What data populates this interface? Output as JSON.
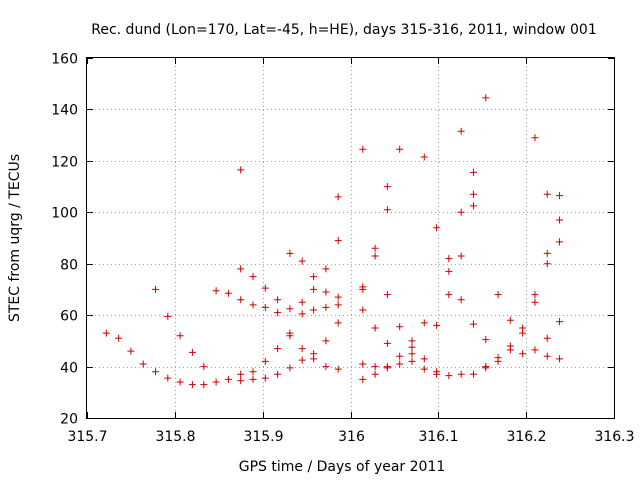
{
  "chart_data": {
    "type": "scatter",
    "title": "Rec. dund (Lon=170, Lat=-45, h=HE), days 315-316, 2011, window 001",
    "xlabel": "GPS time / Days of year 2011",
    "ylabel": "STEC from uqrg / TECUs",
    "xlim": [
      315.7,
      316.3
    ],
    "ylim": [
      20,
      160
    ],
    "xticks": [
      "315.7",
      "315.8",
      "315.9",
      "316",
      "316.1",
      "316.2",
      "316.3"
    ],
    "yticks": [
      "20",
      "40",
      "60",
      "80",
      "100",
      "120",
      "140",
      "160"
    ],
    "grid": true,
    "marker": "+",
    "color": "#cc0000",
    "series": [
      {
        "x": [
          315.722,
          315.736,
          315.75,
          315.764,
          315.778,
          315.778,
          315.792,
          315.792,
          315.806,
          315.806,
          315.82,
          315.82,
          315.833,
          315.833,
          315.847,
          315.847,
          315.861,
          315.861,
          315.875,
          315.875,
          315.875,
          315.875,
          315.875,
          315.889,
          315.889,
          315.889,
          315.889,
          315.903,
          315.903,
          315.903,
          315.903,
          315.917,
          315.917,
          315.917,
          315.917,
          315.931,
          315.931,
          315.931,
          315.931,
          315.931,
          315.945,
          315.945,
          315.945,
          315.945,
          315.945,
          315.958,
          315.958,
          315.958,
          315.958,
          315.958,
          315.972,
          315.972,
          315.972,
          315.972,
          315.972,
          315.986,
          315.986,
          315.986,
          315.986,
          315.986,
          315.986,
          316.014,
          316.014,
          316.014,
          316.014,
          316.014,
          316.014,
          316.028,
          316.028,
          316.028,
          316.028,
          316.028,
          316.042,
          316.042,
          316.042,
          316.042,
          316.042,
          316.042,
          316.056,
          316.056,
          316.056,
          316.056,
          316.07,
          316.07,
          316.07,
          316.07,
          316.084,
          316.084,
          316.084,
          316.084,
          316.098,
          316.098,
          316.098,
          316.098,
          316.112,
          316.112,
          316.112,
          316.112,
          316.126,
          316.126,
          316.126,
          316.126,
          316.126,
          316.14,
          316.14,
          316.14,
          316.14,
          316.14,
          316.154,
          316.154,
          316.154,
          316.154,
          316.168,
          316.168,
          316.168,
          316.182,
          316.182,
          316.182,
          316.196,
          316.196,
          316.196,
          316.21,
          316.21,
          316.21,
          316.21,
          316.224,
          316.224,
          316.224,
          316.224,
          316.224,
          316.238,
          316.238,
          316.238,
          316.238,
          316.238
        ],
        "y": [
          53,
          51,
          46,
          41,
          38,
          70,
          35.5,
          59.5,
          34,
          52,
          33,
          45.5,
          33,
          40,
          34,
          69.5,
          35,
          68.5,
          34.5,
          37,
          66,
          78,
          116.5,
          35,
          38,
          64,
          75,
          35.5,
          42,
          63,
          70.5,
          37,
          47,
          61,
          66,
          39.5,
          52,
          53,
          62.5,
          84,
          42.5,
          47,
          65,
          81,
          60.5,
          43,
          45,
          62,
          70,
          75,
          40,
          50,
          63,
          69,
          78,
          39,
          57,
          64,
          67,
          89,
          106,
          35,
          41,
          62,
          70,
          71,
          124.5,
          37,
          40,
          55,
          83,
          86,
          39.5,
          40,
          49,
          68,
          101,
          110,
          41,
          44,
          55.5,
          124.5,
          42,
          45,
          47.5,
          50,
          39,
          43,
          57,
          121.5,
          37,
          38,
          56,
          94,
          36.5,
          68,
          77,
          82,
          37,
          66,
          83,
          100,
          131.5,
          37,
          56.5,
          102.5,
          107,
          115.5,
          39.5,
          40,
          50.5,
          144.5,
          42,
          43.5,
          68,
          46.5,
          48,
          58,
          45,
          53,
          55,
          46.5,
          65,
          68,
          129,
          44,
          51,
          80,
          84,
          107,
          43,
          57.5,
          88.5,
          97,
          106.5
        ]
      }
    ]
  }
}
